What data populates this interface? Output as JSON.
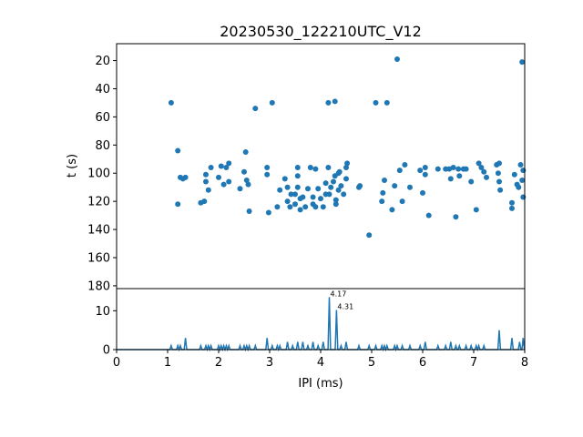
{
  "chart_data": [
    {
      "type": "scatter",
      "title": "20230530_122210UTC_V12",
      "xlabel": "",
      "ylabel": "t (s)",
      "xlim": [
        0,
        8
      ],
      "ylim": [
        182,
        8
      ],
      "y_inverted": true,
      "yticks": [
        "20",
        "40",
        "60",
        "80",
        "100",
        "120",
        "140",
        "160",
        "180"
      ],
      "color": "#1f77b4",
      "points": [
        [
          1.07,
          50
        ],
        [
          1.2,
          84
        ],
        [
          1.2,
          122
        ],
        [
          1.25,
          103
        ],
        [
          1.3,
          104
        ],
        [
          1.35,
          103
        ],
        [
          1.65,
          121
        ],
        [
          1.72,
          120
        ],
        [
          1.75,
          106
        ],
        [
          1.75,
          101
        ],
        [
          1.8,
          112
        ],
        [
          1.85,
          96
        ],
        [
          2.0,
          103
        ],
        [
          2.05,
          95
        ],
        [
          2.1,
          108
        ],
        [
          2.15,
          96
        ],
        [
          2.2,
          106
        ],
        [
          2.2,
          93
        ],
        [
          2.42,
          111
        ],
        [
          2.5,
          99
        ],
        [
          2.53,
          85
        ],
        [
          2.55,
          105
        ],
        [
          2.58,
          108
        ],
        [
          2.6,
          127
        ],
        [
          2.72,
          54
        ],
        [
          2.95,
          96
        ],
        [
          2.95,
          101
        ],
        [
          2.98,
          128
        ],
        [
          3.05,
          50
        ],
        [
          3.15,
          124
        ],
        [
          3.2,
          112
        ],
        [
          3.3,
          104
        ],
        [
          3.35,
          120
        ],
        [
          3.35,
          110
        ],
        [
          3.4,
          124
        ],
        [
          3.42,
          115
        ],
        [
          3.5,
          122
        ],
        [
          3.5,
          115
        ],
        [
          3.55,
          110
        ],
        [
          3.55,
          102
        ],
        [
          3.55,
          96
        ],
        [
          3.6,
          118
        ],
        [
          3.6,
          126
        ],
        [
          3.65,
          117
        ],
        [
          3.7,
          124
        ],
        [
          3.75,
          111
        ],
        [
          3.8,
          96
        ],
        [
          3.85,
          122
        ],
        [
          3.85,
          117
        ],
        [
          3.9,
          97
        ],
        [
          3.9,
          124
        ],
        [
          3.95,
          111
        ],
        [
          4.0,
          118
        ],
        [
          4.05,
          124
        ],
        [
          4.1,
          115
        ],
        [
          4.1,
          107
        ],
        [
          4.15,
          50
        ],
        [
          4.15,
          96
        ],
        [
          4.17,
          115
        ],
        [
          4.2,
          110
        ],
        [
          4.25,
          106
        ],
        [
          4.28,
          49
        ],
        [
          4.28,
          102
        ],
        [
          4.3,
          119
        ],
        [
          4.3,
          122
        ],
        [
          4.35,
          100
        ],
        [
          4.35,
          112
        ],
        [
          4.37,
          99
        ],
        [
          4.4,
          109
        ],
        [
          4.45,
          115
        ],
        [
          4.5,
          96
        ],
        [
          4.5,
          104
        ],
        [
          4.52,
          93
        ],
        [
          4.75,
          110
        ],
        [
          4.77,
          109
        ],
        [
          4.95,
          144
        ],
        [
          5.08,
          50
        ],
        [
          5.2,
          120
        ],
        [
          5.22,
          114
        ],
        [
          5.25,
          105
        ],
        [
          5.3,
          50
        ],
        [
          5.4,
          126
        ],
        [
          5.45,
          109
        ],
        [
          5.5,
          19
        ],
        [
          5.55,
          98
        ],
        [
          5.6,
          120
        ],
        [
          5.65,
          94
        ],
        [
          5.75,
          110
        ],
        [
          5.95,
          98
        ],
        [
          6.0,
          114
        ],
        [
          6.05,
          101
        ],
        [
          6.05,
          96
        ],
        [
          6.12,
          130
        ],
        [
          6.3,
          97
        ],
        [
          6.45,
          97
        ],
        [
          6.52,
          97
        ],
        [
          6.55,
          104
        ],
        [
          6.6,
          96
        ],
        [
          6.65,
          131
        ],
        [
          6.7,
          97
        ],
        [
          6.72,
          102
        ],
        [
          6.8,
          97
        ],
        [
          6.85,
          97
        ],
        [
          6.95,
          106
        ],
        [
          7.05,
          126
        ],
        [
          7.1,
          93
        ],
        [
          7.15,
          96
        ],
        [
          7.2,
          99
        ],
        [
          7.25,
          103
        ],
        [
          7.45,
          94
        ],
        [
          7.48,
          100
        ],
        [
          7.5,
          93
        ],
        [
          7.5,
          106
        ],
        [
          7.52,
          112
        ],
        [
          7.75,
          121
        ],
        [
          7.75,
          125
        ],
        [
          7.8,
          101
        ],
        [
          7.85,
          108
        ],
        [
          7.92,
          94
        ],
        [
          7.95,
          21
        ],
        [
          7.97,
          117
        ],
        [
          7.95,
          105
        ],
        [
          7.97,
          98
        ],
        [
          7.88,
          110
        ]
      ]
    },
    {
      "type": "line",
      "xlabel": "IPI (ms)",
      "ylabel": "",
      "xlim": [
        0,
        8
      ],
      "ylim": [
        0,
        15.7
      ],
      "xticks": [
        "0",
        "1",
        "2",
        "3",
        "4",
        "5",
        "6",
        "7",
        "8"
      ],
      "yticks": [
        "0",
        "10"
      ],
      "color": "#1f77b4",
      "peaks": [
        [
          1.07,
          1
        ],
        [
          1.2,
          1
        ],
        [
          1.25,
          1
        ],
        [
          1.35,
          3
        ],
        [
          1.65,
          1
        ],
        [
          1.75,
          1
        ],
        [
          1.8,
          1
        ],
        [
          1.85,
          1
        ],
        [
          2.0,
          1
        ],
        [
          2.05,
          1
        ],
        [
          2.1,
          1
        ],
        [
          2.15,
          1
        ],
        [
          2.2,
          1
        ],
        [
          2.42,
          1
        ],
        [
          2.5,
          1
        ],
        [
          2.55,
          1
        ],
        [
          2.6,
          1
        ],
        [
          2.72,
          1
        ],
        [
          2.95,
          3
        ],
        [
          3.05,
          1
        ],
        [
          3.15,
          1
        ],
        [
          3.2,
          1
        ],
        [
          3.35,
          2
        ],
        [
          3.45,
          1
        ],
        [
          3.55,
          2
        ],
        [
          3.65,
          2
        ],
        [
          3.75,
          1
        ],
        [
          3.85,
          2
        ],
        [
          3.95,
          1
        ],
        [
          4.05,
          2
        ],
        [
          4.17,
          13.5
        ],
        [
          4.31,
          10.2
        ],
        [
          4.4,
          1
        ],
        [
          4.5,
          2
        ],
        [
          4.75,
          1
        ],
        [
          4.95,
          1
        ],
        [
          5.08,
          1
        ],
        [
          5.2,
          1
        ],
        [
          5.25,
          1
        ],
        [
          5.3,
          1
        ],
        [
          5.45,
          1
        ],
        [
          5.5,
          1
        ],
        [
          5.6,
          1
        ],
        [
          5.75,
          1
        ],
        [
          5.95,
          1
        ],
        [
          6.05,
          2
        ],
        [
          6.3,
          1
        ],
        [
          6.45,
          1
        ],
        [
          6.55,
          2
        ],
        [
          6.65,
          1
        ],
        [
          6.72,
          1
        ],
        [
          6.85,
          1
        ],
        [
          6.95,
          1
        ],
        [
          7.05,
          1
        ],
        [
          7.1,
          1
        ],
        [
          7.2,
          1
        ],
        [
          7.5,
          5
        ],
        [
          7.75,
          3
        ],
        [
          7.9,
          2
        ],
        [
          7.97,
          3
        ]
      ],
      "annotations": [
        {
          "x": 4.17,
          "y": 13.5,
          "text": "4.17"
        },
        {
          "x": 4.31,
          "y": 10.2,
          "text": "4.31"
        }
      ]
    }
  ]
}
